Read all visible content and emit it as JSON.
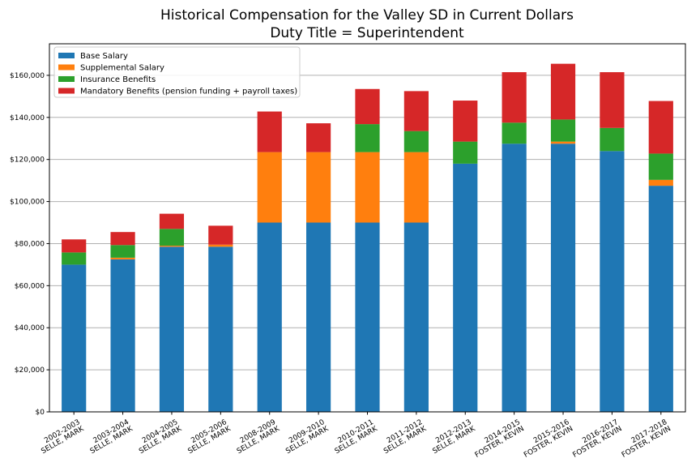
{
  "chart_data": {
    "type": "bar",
    "stacked": true,
    "title": "Historical Compensation for the Valley SD in Current Dollars",
    "subtitle": "Duty Title = Superintendent",
    "xlabel": "",
    "ylabel": "",
    "ylim": [
      0,
      175000
    ],
    "yticks": [
      0,
      20000,
      40000,
      60000,
      80000,
      100000,
      120000,
      140000,
      160000
    ],
    "ytick_labels": [
      "$0",
      "$20,000",
      "$40,000",
      "$60,000",
      "$80,000",
      "$100,000",
      "$120,000",
      "$140,000",
      "$160,000"
    ],
    "grid": "horizontal",
    "legend_position": "top-left",
    "categories": [
      [
        "2002-2003",
        "SELLE, MARK"
      ],
      [
        "2003-2004",
        "SELLE, MARK"
      ],
      [
        "2004-2005",
        "SELLE, MARK"
      ],
      [
        "2005-2006",
        "SELLE, MARK"
      ],
      [
        "2008-2009",
        "SELLE, MARK"
      ],
      [
        "2009-2010",
        "SELLE, MARK"
      ],
      [
        "2010-2011",
        "SELLE, MARK"
      ],
      [
        "2011-2012",
        "SELLE, MARK"
      ],
      [
        "2012-2013",
        "SELLE, MARK"
      ],
      [
        "2014-2015",
        "FOSTER, KEVIN"
      ],
      [
        "2015-2016",
        "FOSTER, KEVIN"
      ],
      [
        "2016-2017",
        "FOSTER, KEVIN"
      ],
      [
        "2017-2018",
        "FOSTER, KEVIN"
      ]
    ],
    "series": [
      {
        "name": "Base Salary",
        "color": "#1f77b4",
        "values": [
          70000,
          72500,
          78500,
          78500,
          90000,
          90000,
          90000,
          90000,
          118000,
          127500,
          127500,
          124000,
          107500
        ]
      },
      {
        "name": "Supplemental Salary",
        "color": "#ff7f0e",
        "values": [
          0,
          800,
          500,
          1000,
          33500,
          33500,
          33500,
          33500,
          0,
          0,
          1000,
          0,
          2800
        ]
      },
      {
        "name": "Insurance Benefits",
        "color": "#2ca02c",
        "values": [
          5800,
          6000,
          8000,
          0,
          0,
          0,
          13300,
          10000,
          10500,
          10000,
          10500,
          11000,
          12500
        ]
      },
      {
        "name": "Mandatory Benefits (pension funding + payroll taxes)",
        "color": "#d62728",
        "values": [
          6200,
          6200,
          7200,
          9000,
          19300,
          13700,
          16700,
          19000,
          19500,
          24000,
          26500,
          26500,
          25000
        ]
      }
    ]
  }
}
